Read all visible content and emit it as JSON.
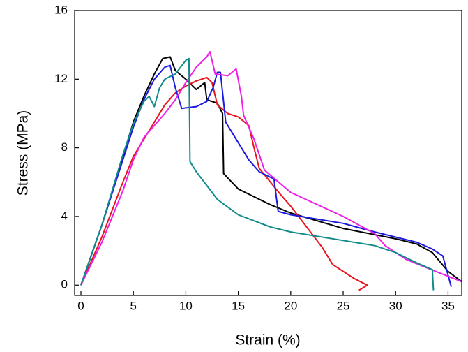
{
  "chart_data": {
    "type": "line",
    "x_label": "Strain (%)",
    "y_label": "Stress (MPa)",
    "xlim": [
      -0.6,
      36.3
    ],
    "ylim": [
      -0.6,
      16
    ],
    "xticks": [
      0,
      5,
      10,
      15,
      20,
      25,
      30,
      35
    ],
    "yticks": [
      0,
      4,
      8,
      12,
      16
    ],
    "series": [
      {
        "color": "#000000",
        "x": [
          0,
          2,
          4,
          5,
          6,
          7,
          7.8,
          8.5,
          9,
          10,
          11,
          11.8,
          12,
          13,
          13.5,
          13.6,
          15,
          18,
          20,
          25,
          30,
          32,
          33.5,
          35,
          36.3
        ],
        "values": [
          0,
          3.5,
          7.5,
          9.5,
          11,
          12.3,
          13.2,
          13.3,
          12.5,
          12,
          11.4,
          11.8,
          10.8,
          10.6,
          10,
          6.5,
          5.6,
          4.7,
          4.2,
          3.3,
          2.7,
          2.4,
          1.9,
          0.8,
          0.2
        ]
      },
      {
        "color": "#e8141c",
        "x": [
          0,
          2,
          4,
          5,
          7,
          8,
          9,
          10,
          11,
          12,
          12.5,
          13,
          14,
          15,
          16,
          16.5,
          17,
          19,
          20,
          21,
          23,
          24,
          25,
          26,
          27.3,
          26.5
        ],
        "values": [
          0,
          2.8,
          6,
          7.5,
          9.5,
          10.5,
          11.2,
          11.6,
          11.9,
          12.1,
          11.8,
          10.5,
          10,
          9.8,
          9.3,
          8,
          6.8,
          5.3,
          4.6,
          3.8,
          2.2,
          1.2,
          0.8,
          0.4,
          0,
          -0.3
        ]
      },
      {
        "color": "#1a1ae0",
        "x": [
          0,
          2,
          4,
          5,
          6,
          7,
          8,
          8.5,
          9,
          9.6,
          11,
          12,
          12.6,
          13,
          13.3,
          13.8,
          15,
          16,
          17,
          18,
          18.4,
          18.8,
          20,
          25,
          28,
          32,
          33.5,
          34.5,
          35.3
        ],
        "values": [
          0,
          3.5,
          7.3,
          9.2,
          10.8,
          12,
          12.7,
          12.8,
          11.5,
          10.3,
          10.4,
          10.7,
          11.5,
          12.4,
          12.4,
          9.5,
          8.3,
          7.3,
          6.6,
          6.3,
          6.2,
          4.3,
          4.1,
          3.6,
          3.1,
          2.5,
          2.1,
          1.7,
          -0.1
        ]
      },
      {
        "color": "#ee1ee8",
        "x": [
          0,
          2,
          4,
          5,
          6,
          8,
          9,
          10,
          11,
          12,
          12.3,
          12.8,
          14,
          14.8,
          15.3,
          15.5,
          16.5,
          17.5,
          20,
          25,
          28,
          29,
          31,
          33,
          36.3
        ],
        "values": [
          0,
          2.5,
          5.5,
          7.3,
          8.6,
          10,
          10.8,
          11.8,
          12.7,
          13.3,
          13.6,
          12.3,
          12.2,
          12.6,
          11,
          9.9,
          8.5,
          6.7,
          5.4,
          4,
          3,
          2.3,
          1.5,
          1,
          0.2
        ]
      },
      {
        "color": "#138a8a",
        "x": [
          0,
          2,
          4,
          5,
          6,
          6.5,
          7,
          7.5,
          8,
          9,
          10,
          10.3,
          10.4,
          11,
          13,
          15,
          18,
          20,
          25,
          28,
          30,
          32,
          33.5,
          33.6
        ],
        "values": [
          0,
          3.5,
          7.6,
          9.4,
          10.7,
          11,
          10.4,
          11.5,
          12,
          12.3,
          13.1,
          13.2,
          7.2,
          6.6,
          5,
          4.1,
          3.4,
          3.1,
          2.6,
          2.3,
          1.9,
          1.3,
          0.9,
          -0.3
        ]
      }
    ]
  }
}
